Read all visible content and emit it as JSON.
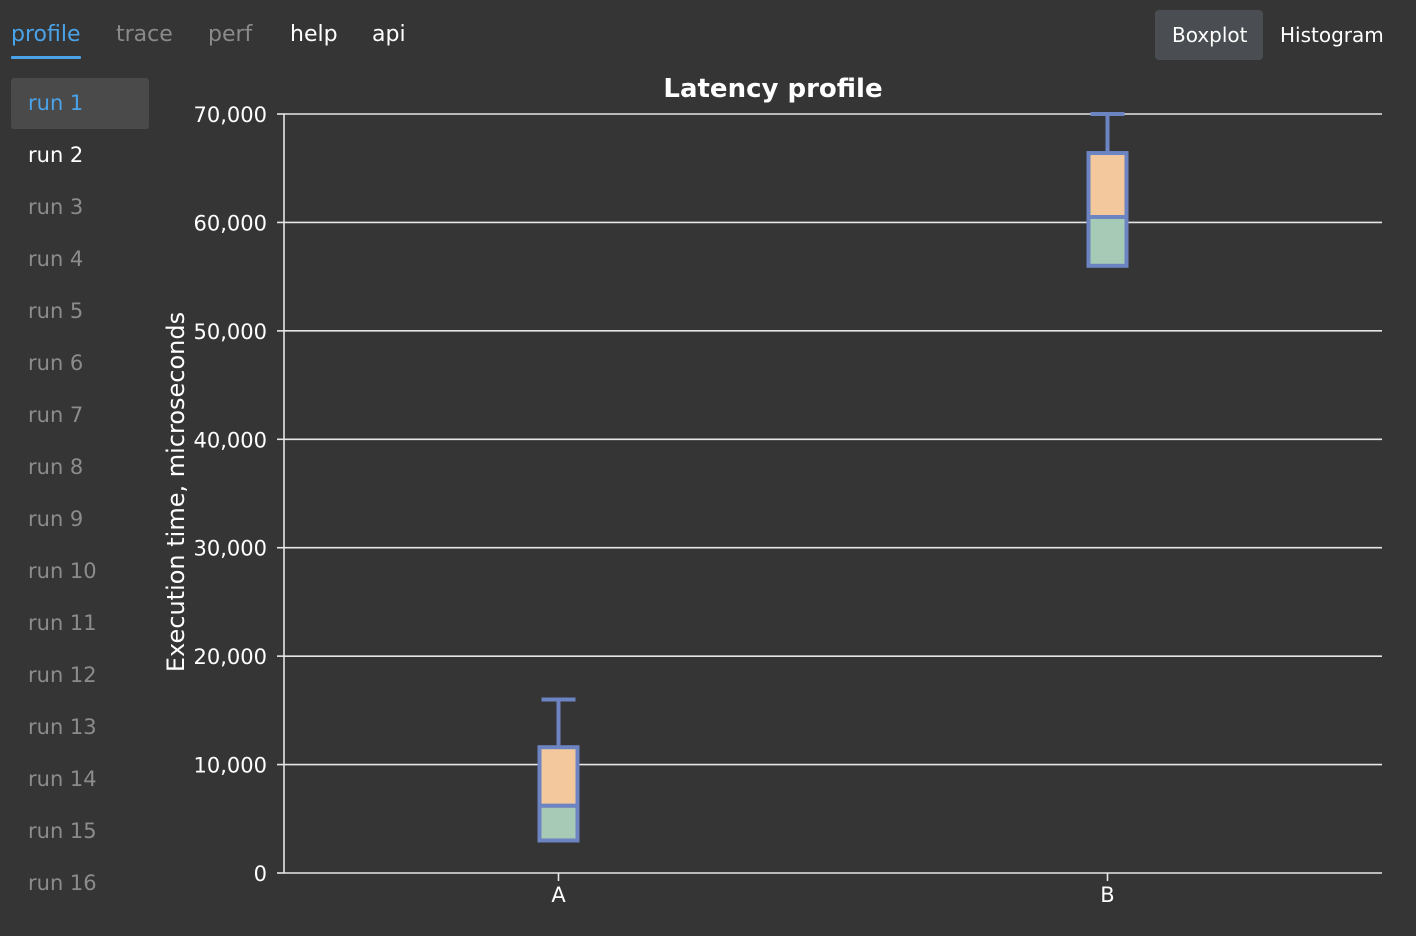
{
  "nav": {
    "tabs": [
      {
        "label": "profile",
        "state": "active"
      },
      {
        "label": "trace",
        "state": "dim"
      },
      {
        "label": "perf",
        "state": "dim"
      },
      {
        "label": "help",
        "state": "bright"
      },
      {
        "label": "api",
        "state": "bright"
      }
    ]
  },
  "view_toggle": {
    "boxplot_label": "Boxplot",
    "histogram_label": "Histogram",
    "selected": "Boxplot"
  },
  "sidebar": {
    "runs": [
      {
        "label": "run 1",
        "state": "selected"
      },
      {
        "label": "run 2",
        "state": "hover"
      },
      {
        "label": "run 3",
        "state": "normal"
      },
      {
        "label": "run 4",
        "state": "normal"
      },
      {
        "label": "run 5",
        "state": "normal"
      },
      {
        "label": "run 6",
        "state": "normal"
      },
      {
        "label": "run 7",
        "state": "normal"
      },
      {
        "label": "run 8",
        "state": "normal"
      },
      {
        "label": "run 9",
        "state": "normal"
      },
      {
        "label": "run 10",
        "state": "normal"
      },
      {
        "label": "run 11",
        "state": "normal"
      },
      {
        "label": "run 12",
        "state": "normal"
      },
      {
        "label": "run 13",
        "state": "normal"
      },
      {
        "label": "run 14",
        "state": "normal"
      },
      {
        "label": "run 15",
        "state": "normal"
      },
      {
        "label": "run 16",
        "state": "normal"
      }
    ]
  },
  "colors": {
    "accent": "#4aa3e8",
    "background": "#353535",
    "box_stroke": "#6d84c2",
    "upper_box_fill": "#f4c89d",
    "lower_box_fill": "#a6cab5",
    "grid": "#e6e6e6"
  },
  "chart_data": {
    "type": "boxplot",
    "title": "Latency profile",
    "xlabel": "",
    "ylabel": "Execution time, microseconds",
    "ylim": [
      0,
      70000
    ],
    "yticks": [
      0,
      10000,
      20000,
      30000,
      40000,
      50000,
      60000,
      70000
    ],
    "ytick_labels": [
      "0",
      "10,000",
      "20,000",
      "30,000",
      "40,000",
      "50,000",
      "60,000",
      "70,000"
    ],
    "grid": true,
    "categories": [
      "A",
      "B"
    ],
    "boxes": [
      {
        "category": "A",
        "whisker_low": 3000,
        "q1": 3000,
        "median": 6200,
        "q3": 11600,
        "whisker_high": 16000
      },
      {
        "category": "B",
        "whisker_low": 56000,
        "q1": 56000,
        "median": 60500,
        "q3": 66400,
        "whisker_high": 70000
      }
    ]
  }
}
